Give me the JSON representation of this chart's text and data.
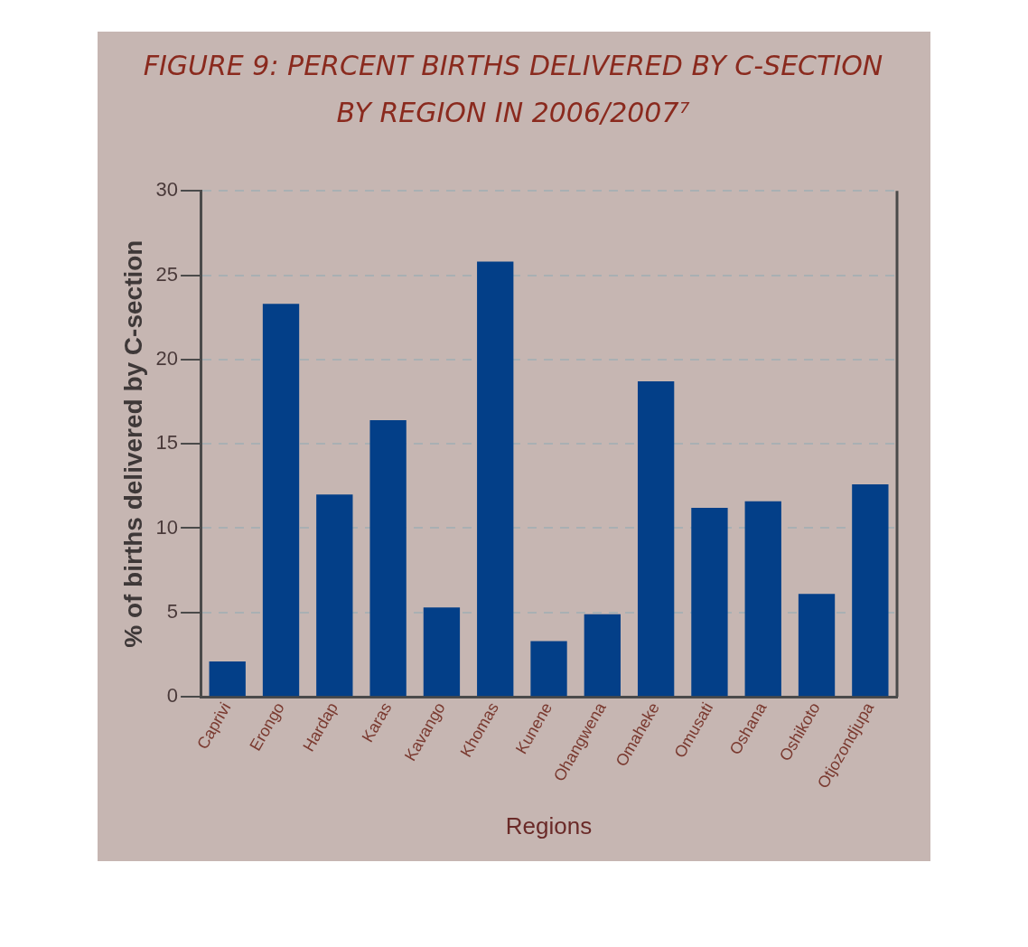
{
  "chart_data": {
    "type": "bar",
    "title": "FIGURE 9: PERCENT BIRTHS DELIVERED BY C-SECTION BY REGION IN 2006/2007⁷",
    "xlabel": "Regions",
    "ylabel": "% of births delivered by C-section",
    "categories": [
      "Caprivi",
      "Erongo",
      "Hardap",
      "Karas",
      "Kavango",
      "Khomas",
      "Kunene",
      "Ohangwena",
      "Omaheke",
      "Omusati",
      "Oshana",
      "Oshikoto",
      "Otjozondjupa"
    ],
    "values": [
      2.1,
      23.3,
      12.0,
      16.4,
      5.3,
      25.8,
      3.3,
      4.9,
      18.7,
      11.2,
      11.6,
      6.1,
      12.6
    ],
    "color": "#033f88",
    "ylim": [
      0,
      30
    ],
    "yticks": [
      0,
      5,
      10,
      15,
      20,
      25,
      30
    ],
    "grid": "y",
    "legend": false
  }
}
